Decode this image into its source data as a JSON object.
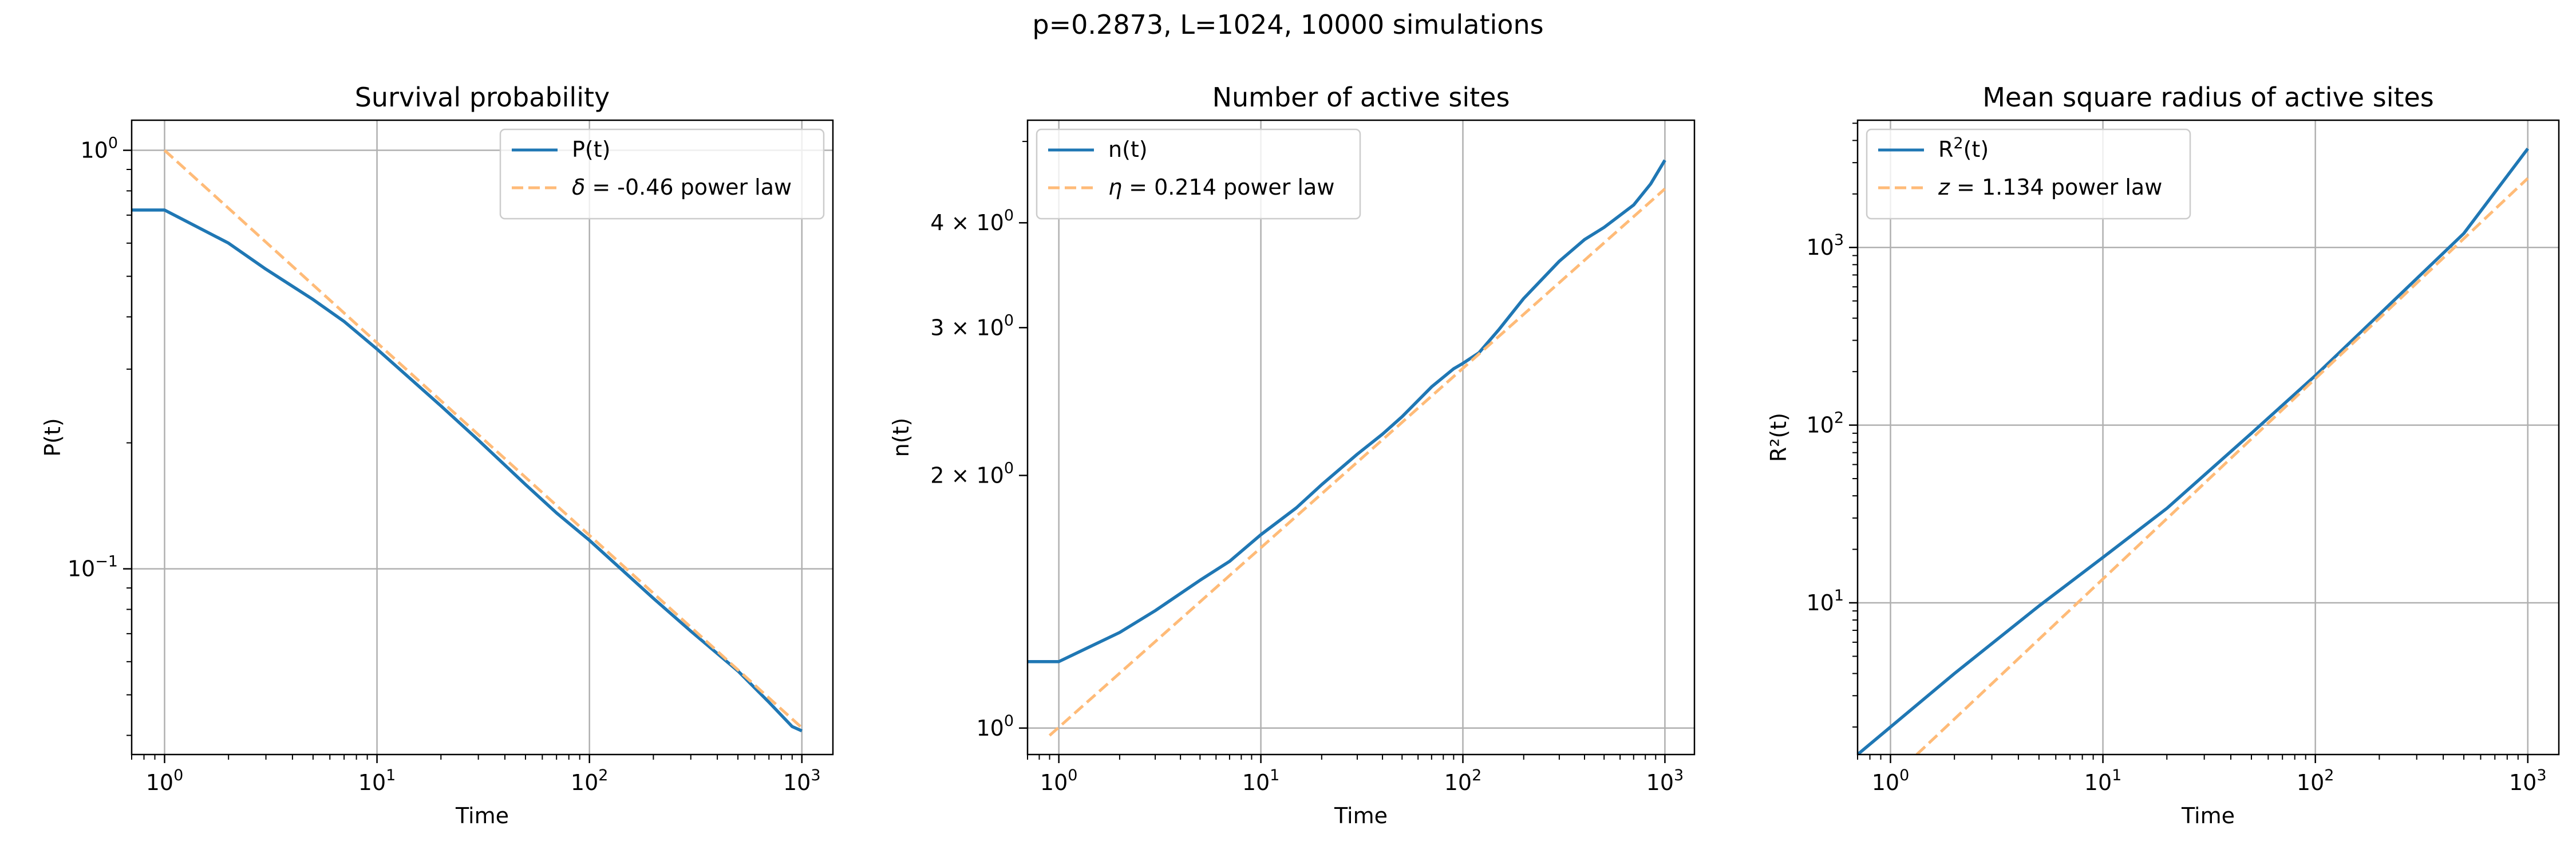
{
  "figure": {
    "suptitle": "p=0.2873, L=1024, 10000 simulations"
  },
  "colors": {
    "data_line": "#1f77b4",
    "fit_line": "#ffbb78",
    "grid": "#b0b0b0"
  },
  "chart_data": [
    {
      "type": "line",
      "title": "Survival probability",
      "xlabel": "Time",
      "ylabel": "P(t)",
      "xscale": "log",
      "yscale": "log",
      "xlim": [
        0.7,
        1400
      ],
      "ylim": [
        0.036,
        1.18
      ],
      "xticks": [
        {
          "value": 1,
          "base": "10",
          "exp": "0"
        },
        {
          "value": 10,
          "base": "10",
          "exp": "1"
        },
        {
          "value": 100,
          "base": "10",
          "exp": "2"
        },
        {
          "value": 1000,
          "base": "10",
          "exp": "3"
        }
      ],
      "yticks": [
        {
          "value": 1,
          "base": "10",
          "exp": "0"
        },
        {
          "value": 0.1,
          "base": "10",
          "exp": "−1"
        }
      ],
      "grid": true,
      "legend_position": "upper-right",
      "series": [
        {
          "name": "P(t)",
          "style": "solid",
          "x": [
            0.7,
            1,
            2,
            3,
            5,
            7,
            10,
            20,
            30,
            50,
            70,
            100,
            200,
            300,
            500,
            700,
            900,
            1000
          ],
          "y": [
            0.72,
            0.72,
            0.6,
            0.52,
            0.44,
            0.39,
            0.335,
            0.245,
            0.203,
            0.159,
            0.136,
            0.117,
            0.085,
            0.071,
            0.057,
            0.048,
            0.042,
            0.041
          ]
        },
        {
          "name": "δ = -0.46 power law",
          "legend_prefix": "δ",
          "legend_suffix": " = -0.46 power law",
          "style": "dashed",
          "x": [
            1,
            1000
          ],
          "y": [
            1.0,
            0.0417
          ]
        }
      ]
    },
    {
      "type": "line",
      "title": "Number of active sites",
      "xlabel": "Time",
      "ylabel": "n(t)",
      "xscale": "log",
      "yscale": "log",
      "xlim": [
        0.7,
        1400
      ],
      "ylim": [
        0.93,
        5.3
      ],
      "xticks": [
        {
          "value": 1,
          "base": "10",
          "exp": "0"
        },
        {
          "value": 10,
          "base": "10",
          "exp": "1"
        },
        {
          "value": 100,
          "base": "10",
          "exp": "2"
        },
        {
          "value": 1000,
          "base": "10",
          "exp": "3"
        }
      ],
      "yticks": [
        {
          "value": 1,
          "base": "10",
          "exp": "0",
          "grid": true
        },
        {
          "value": 2,
          "mant": "2 × ",
          "base": "10",
          "exp": "0"
        },
        {
          "value": 3,
          "mant": "3 × ",
          "base": "10",
          "exp": "0"
        },
        {
          "value": 4,
          "mant": "4 × ",
          "base": "10",
          "exp": "0"
        }
      ],
      "grid": true,
      "legend_position": "upper-left",
      "series": [
        {
          "name": "n(t)",
          "style": "solid",
          "x": [
            0.7,
            1,
            2,
            3,
            5,
            7,
            10,
            15,
            20,
            30,
            40,
            50,
            70,
            90,
            100,
            120,
            150,
            200,
            300,
            400,
            500,
            700,
            850,
            1000
          ],
          "y": [
            1.2,
            1.2,
            1.3,
            1.38,
            1.5,
            1.58,
            1.7,
            1.83,
            1.95,
            2.12,
            2.24,
            2.35,
            2.55,
            2.68,
            2.72,
            2.8,
            2.98,
            3.25,
            3.6,
            3.82,
            3.95,
            4.2,
            4.45,
            4.75
          ]
        },
        {
          "name": "η = 0.214 power law",
          "legend_prefix": "η",
          "legend_suffix": " = 0.214 power law",
          "style": "dashed",
          "x": [
            0.9,
            1000
          ],
          "y": [
            0.98,
            4.39
          ]
        }
      ]
    },
    {
      "type": "line",
      "title": "Mean square radius of active sites",
      "xlabel": "Time",
      "ylabel": "R²(t)",
      "xscale": "log",
      "yscale": "log",
      "xlim": [
        0.7,
        1400
      ],
      "ylim": [
        1.4,
        5200
      ],
      "xticks": [
        {
          "value": 1,
          "base": "10",
          "exp": "0"
        },
        {
          "value": 10,
          "base": "10",
          "exp": "1"
        },
        {
          "value": 100,
          "base": "10",
          "exp": "2"
        },
        {
          "value": 1000,
          "base": "10",
          "exp": "3"
        }
      ],
      "yticks": [
        {
          "value": 10,
          "base": "10",
          "exp": "1"
        },
        {
          "value": 100,
          "base": "10",
          "exp": "2"
        },
        {
          "value": 1000,
          "base": "10",
          "exp": "3"
        }
      ],
      "grid": true,
      "legend_position": "upper-left",
      "series": [
        {
          "name": "R²(t)",
          "legend_prefix": "R",
          "legend_sup": "2",
          "legend_suffix": "(t)",
          "style": "solid",
          "x": [
            0.7,
            1,
            2,
            5,
            10,
            20,
            50,
            100,
            200,
            500,
            1000
          ],
          "y": [
            1.4,
            2.0,
            4.0,
            9.6,
            18.0,
            34.0,
            90,
            190,
            420,
            1200,
            3600
          ]
        },
        {
          "name": "z = 1.134 power law",
          "legend_prefix": "z",
          "legend_suffix": " = 1.134 power law",
          "style": "dashed",
          "x": [
            1.33,
            1000
          ],
          "y": [
            1.4,
            2450
          ]
        }
      ]
    }
  ]
}
